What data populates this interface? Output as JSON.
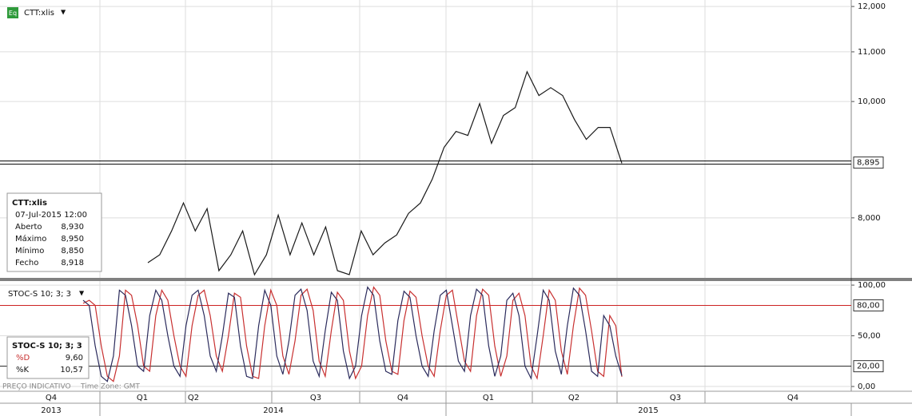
{
  "header": {
    "symbol": "CTT:xlis",
    "icon": "Eq"
  },
  "chart_data": [
    {
      "type": "line",
      "log_scale": true,
      "grid": true,
      "ylim": [
        7130,
        12150
      ],
      "yticks": [
        {
          "value": 12000,
          "label": "12,000"
        },
        {
          "value": 11000,
          "label": "11,000"
        },
        {
          "value": 10000,
          "label": "10,000"
        },
        {
          "value": 8000,
          "label": "8,000"
        }
      ],
      "last_value": {
        "value": 8895,
        "label": "8,895"
      },
      "series": [
        {
          "name": "CTT:xlis",
          "color": "#1a1a1a",
          "values": [
            7340,
            7453,
            7802,
            8231,
            7802,
            8143,
            7229,
            7453,
            7802,
            7174,
            7453,
            8044,
            7453,
            7922,
            7453,
            7862,
            7229,
            7174,
            7802,
            7453,
            7625,
            7742,
            8069,
            8231,
            8616,
            9159,
            9442,
            9371,
            9960,
            9229,
            9736,
            9884,
            10588,
            10116,
            10270,
            10116,
            9661,
            9300,
            9515,
            9515,
            8883
          ]
        }
      ]
    },
    {
      "type": "line",
      "grid": true,
      "ylim": [
        -4.7,
        104
      ],
      "yticks": [
        {
          "value": 0,
          "label": "0,00"
        },
        {
          "value": 50,
          "label": "50,00"
        },
        {
          "value": 100,
          "label": "100,00"
        }
      ],
      "levels": [
        {
          "value": 80,
          "label": "80,00",
          "color": "#cc2222"
        },
        {
          "value": 20,
          "label": "20,00",
          "color": "#222222"
        }
      ],
      "series": [
        {
          "name": "%K",
          "color": "#2b2b5c",
          "values": [
            85,
            80,
            40,
            10,
            5,
            30,
            95,
            90,
            60,
            20,
            15,
            70,
            95,
            85,
            50,
            20,
            10,
            60,
            90,
            95,
            70,
            30,
            15,
            50,
            92,
            88,
            40,
            10,
            8,
            60,
            95,
            80,
            30,
            12,
            45,
            90,
            96,
            75,
            25,
            10,
            55,
            93,
            85,
            35,
            8,
            20,
            70,
            98,
            90,
            45,
            15,
            12,
            65,
            94,
            88,
            50,
            20,
            10,
            55,
            90,
            95,
            60,
            25,
            15,
            70,
            96,
            90,
            40,
            10,
            30,
            85,
            92,
            70,
            20,
            8,
            50,
            95,
            85,
            35,
            12,
            60,
            97,
            90,
            55,
            15,
            10,
            70,
            60,
            30,
            10.57
          ]
        },
        {
          "name": "%D",
          "color": "#c83030",
          "values": [
            82,
            85,
            80,
            40,
            10,
            5,
            30,
            95,
            90,
            60,
            20,
            15,
            70,
            95,
            85,
            50,
            20,
            10,
            60,
            90,
            95,
            70,
            30,
            15,
            50,
            92,
            88,
            40,
            10,
            8,
            60,
            95,
            80,
            30,
            12,
            45,
            90,
            96,
            75,
            25,
            10,
            55,
            93,
            85,
            35,
            8,
            20,
            70,
            98,
            90,
            45,
            15,
            12,
            65,
            94,
            88,
            50,
            20,
            10,
            55,
            90,
            95,
            60,
            25,
            15,
            70,
            96,
            90,
            40,
            10,
            30,
            85,
            92,
            70,
            20,
            8,
            50,
            95,
            85,
            35,
            12,
            60,
            97,
            90,
            55,
            15,
            10,
            70,
            60,
            9.6
          ]
        }
      ]
    }
  ],
  "indicator": {
    "title": "STOC-S 10; 3; 3"
  },
  "info_box": {
    "title": "CTT:xlis",
    "datetime": "07-Jul-2015 12:00",
    "rows": [
      [
        "Aberto",
        "8,930"
      ],
      [
        "Máximo",
        "8,950"
      ],
      [
        "Mínimo",
        "8,850"
      ],
      [
        "Fecho",
        "8,918"
      ]
    ]
  },
  "stoch_box": {
    "title": "STOC-S 10; 3; 3",
    "rows": [
      [
        "%D",
        "9,60"
      ],
      [
        "%K",
        "10,57"
      ]
    ]
  },
  "footer": {
    "note": "PREÇO INDICATIVO",
    "timezone": "Time Zone: GMT"
  },
  "time_axis": {
    "quarters": [
      "Q4",
      "Q1",
      "Q2",
      "Q3",
      "Q4",
      "Q1",
      "Q2",
      "Q3",
      "Q4"
    ],
    "years": [
      "2013",
      "2014",
      "2015"
    ]
  }
}
